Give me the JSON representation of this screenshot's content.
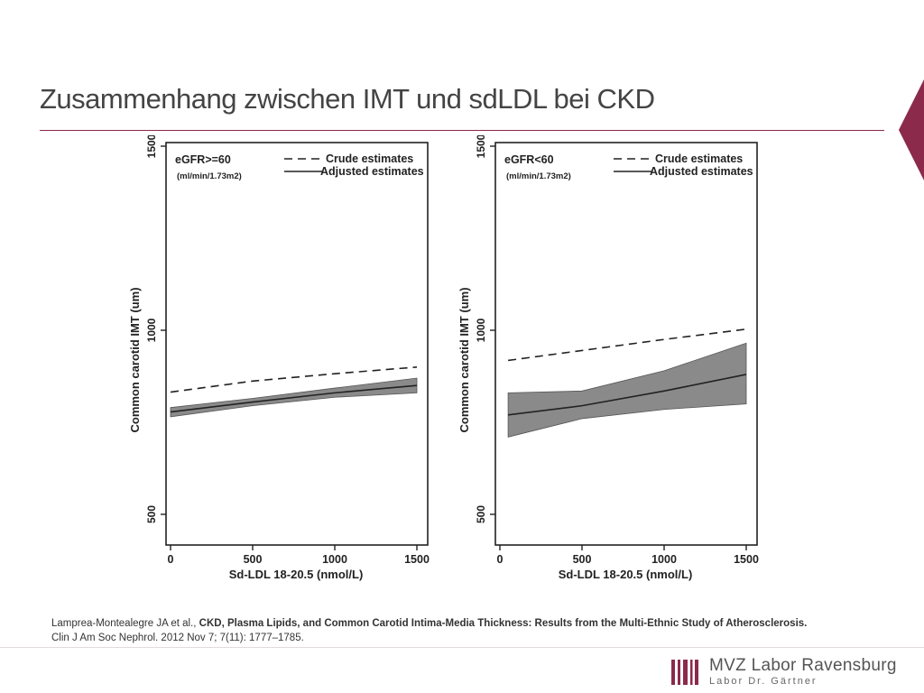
{
  "slide": {
    "title": "Zusammenhang zwischen IMT und sdLDL bei CKD",
    "accent_color": "#8c2a4c"
  },
  "citation": {
    "authors": "Lamprea-Montealegre JA et al., ",
    "article_title": "CKD, Plasma Lipids, and Common Carotid Intima-Media Thickness: Results from the Multi-Ethnic Study of Atherosclerosis.",
    "journal": "Clin J Am Soc Nephrol. 2012 Nov 7; 7(11): 1777–1785."
  },
  "logo": {
    "name": "MVZ Labor Ravensburg",
    "subtitle": "Labor Dr. Gärtner",
    "icon": "barcode-logo-icon"
  },
  "chart_data": [
    {
      "type": "line",
      "group_label": "eGFR>=60",
      "group_unit": "(ml/min/1.73m2)",
      "xlabel": "Sd-LDL 18-20.5 (nmol/L)",
      "ylabel": "Common carotid IMT (um)",
      "xlim": [
        0,
        1500
      ],
      "ylim": [
        500,
        1500
      ],
      "xticks": [
        0,
        500,
        1000,
        1500
      ],
      "yticks": [
        500,
        1000,
        1500
      ],
      "legend_position": "top-right",
      "legend": [
        "Crude estimates",
        "Adjusted estimates"
      ],
      "x": [
        0,
        500,
        1000,
        1500
      ],
      "series": [
        {
          "name": "Crude estimates",
          "style": "dashed",
          "values": [
            832,
            862,
            882,
            900
          ]
        },
        {
          "name": "Adjusted estimates",
          "style": "solid",
          "values": [
            778,
            805,
            830,
            850
          ]
        }
      ],
      "ci_band": {
        "lower": [
          765,
          795,
          818,
          830
        ],
        "upper": [
          790,
          815,
          843,
          870
        ]
      }
    },
    {
      "type": "line",
      "group_label": "eGFR<60",
      "group_unit": "(ml/min/1.73m2)",
      "xlabel": "Sd-LDL 18-20.5 (nmol/L)",
      "ylabel": "Common carotid IMT (um)",
      "xlim": [
        0,
        1500
      ],
      "ylim": [
        500,
        1500
      ],
      "xticks": [
        0,
        500,
        1000,
        1500
      ],
      "yticks": [
        500,
        1000,
        1500
      ],
      "legend_position": "top-right",
      "legend": [
        "Crude estimates",
        "Adjusted estimates"
      ],
      "x": [
        50,
        500,
        1000,
        1500
      ],
      "series": [
        {
          "name": "Crude estimates",
          "style": "dashed",
          "values": [
            918,
            945,
            975,
            1003
          ]
        },
        {
          "name": "Adjusted estimates",
          "style": "solid",
          "values": [
            770,
            795,
            835,
            880
          ]
        }
      ],
      "ci_band": {
        "lower": [
          710,
          760,
          785,
          800
        ],
        "upper": [
          830,
          835,
          890,
          965
        ]
      }
    }
  ]
}
